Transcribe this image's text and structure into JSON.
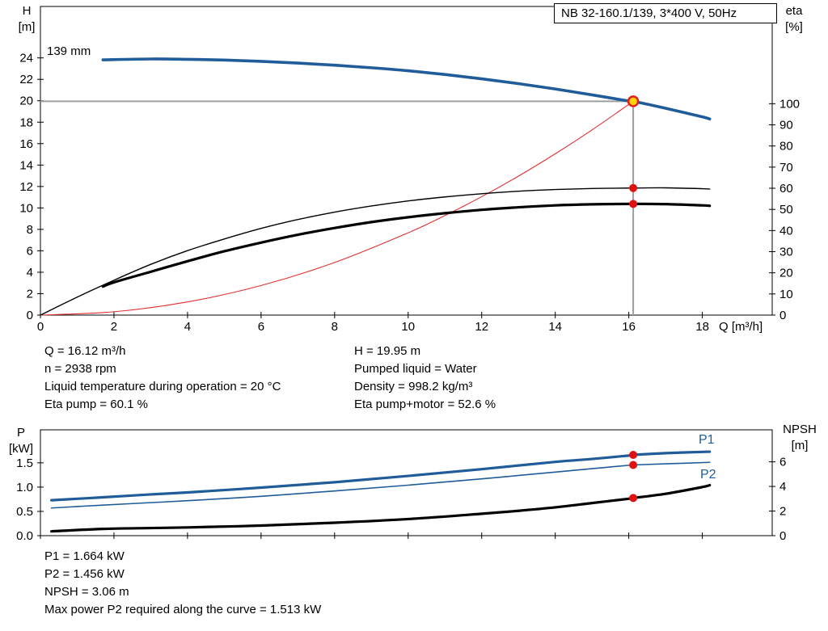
{
  "title_box": "NB 32-160.1/139, 3*400 V, 50Hz",
  "labels": {
    "impeller": "139 mm",
    "p1": "P1",
    "p2": "P2",
    "top_left_axis": [
      "H",
      "[m]"
    ],
    "top_right_axis": [
      "eta",
      "[%]"
    ],
    "x_axis": "Q [m³/h]",
    "bottom_left_axis": [
      "P",
      "[kW]"
    ],
    "bottom_right_axis": [
      "NPSH",
      "[m]"
    ]
  },
  "info_top_left": [
    "Q = 16.12 m³/h",
    "n = 2938 rpm",
    "Liquid temperature during operation = 20 °C",
    "Eta pump = 60.1 %"
  ],
  "info_top_right": [
    "H = 19.95 m",
    "Pumped liquid = Water",
    "Density = 998.2 kg/m³",
    "Eta pump+motor = 52.6 %"
  ],
  "info_bottom": [
    "P1 = 1.664 kW",
    "P2 = 1.456 kW",
    "NPSH = 3.06 m",
    "Max power P2 required along the curve = 1.513 kW"
  ],
  "colors": {
    "curve_blue": "#1f5c99",
    "curve_red": "#e03030",
    "dot": "#e01010",
    "duty_fill": "#ffd400",
    "duty_ring": "#e02020",
    "crosshair": "#9e9e9e"
  },
  "chart_data": [
    {
      "type": "line",
      "name": "hq-eta-chart",
      "title": "NB 32-160.1/139, 3*400 V, 50Hz",
      "xlabel": "Q [m³/h]",
      "ylabel_left": "H [m]",
      "ylabel_right": "eta [%]",
      "xlim": [
        0,
        19.9
      ],
      "ylim_left": [
        0,
        28.8
      ],
      "ylim_right": [
        0,
        146
      ],
      "x_ticks": [
        0,
        2,
        4,
        6,
        8,
        10,
        12,
        14,
        16,
        18
      ],
      "x_tick_labels": [
        "0",
        "2",
        "4",
        "6",
        "8",
        "10",
        "12",
        "14",
        "16",
        "18"
      ],
      "y_ticks_left": [
        0,
        2,
        4,
        6,
        8,
        10,
        12,
        14,
        16,
        18,
        20,
        22,
        24
      ],
      "y_tick_labels_left": [
        "0",
        "2",
        "4",
        "6",
        "8",
        "10",
        "12",
        "14",
        "16",
        "18",
        "20",
        "22",
        "24"
      ],
      "y_ticks_right": [
        0,
        10,
        20,
        30,
        40,
        50,
        60,
        70,
        80,
        90,
        100
      ],
      "y_tick_labels_right": [
        "0",
        "10",
        "20",
        "30",
        "40",
        "50",
        "60",
        "70",
        "80",
        "90",
        "100"
      ],
      "crosshair": {
        "x": 16.12,
        "y": 19.95
      },
      "series": [
        {
          "name": "system-curve",
          "axis": "left",
          "color": "#e03030",
          "width": 1.1,
          "x": [
            0,
            2,
            4,
            6,
            8,
            10,
            11,
            12,
            13,
            14,
            15,
            16,
            16.12
          ],
          "y": [
            0,
            0.31,
            1.23,
            2.76,
            4.91,
            7.68,
            9.29,
            11.05,
            12.97,
            15.05,
            17.28,
            19.66,
            19.95
          ]
        },
        {
          "name": "eta-pump-curve",
          "axis": "right",
          "color": "#000000",
          "width": 1.4,
          "x": [
            0,
            1,
            2,
            3,
            4,
            5,
            6,
            7,
            8,
            9,
            10,
            11,
            12,
            13,
            14,
            15,
            16,
            16.12,
            17,
            18,
            18.2
          ],
          "y": [
            0,
            8.5,
            16.5,
            24,
            30.5,
            36,
            41,
            45.2,
            48.7,
            51.6,
            54,
            55.9,
            57.4,
            58.6,
            59.4,
            59.9,
            60.1,
            60.1,
            60.2,
            59.8,
            59.6
          ]
        },
        {
          "name": "eta-pump-motor-curve",
          "axis": "right",
          "color": "#000000",
          "width": 3.2,
          "x": [
            1.7,
            2,
            3,
            4,
            5,
            6,
            7,
            8,
            9,
            10,
            11,
            12,
            13,
            14,
            15,
            16,
            16.12,
            17,
            18,
            18.2
          ],
          "y": [
            13.5,
            15.5,
            20.5,
            25.5,
            30.2,
            34.3,
            38,
            41.2,
            44,
            46.3,
            48.2,
            49.8,
            51,
            51.9,
            52.4,
            52.6,
            52.6,
            52.5,
            51.9,
            51.7
          ]
        },
        {
          "name": "head-curve-139mm",
          "axis": "left",
          "color": "#1f5c99",
          "width": 3.6,
          "x": [
            1.7,
            3,
            4,
            5,
            6,
            7,
            8,
            9,
            10,
            11,
            12,
            13,
            14,
            15,
            16,
            16.12,
            17,
            18,
            18.2
          ],
          "y": [
            23.82,
            23.9,
            23.87,
            23.8,
            23.68,
            23.52,
            23.32,
            23.08,
            22.8,
            22.45,
            22.05,
            21.6,
            21.1,
            20.55,
            19.98,
            19.95,
            19.3,
            18.5,
            18.3
          ]
        }
      ],
      "markers": [
        {
          "x": 16.12,
          "y": 19.95,
          "axis": "left",
          "style": "duty",
          "name": "duty-point"
        },
        {
          "x": 16.12,
          "y": 60.1,
          "axis": "right",
          "style": "dot",
          "name": "eta-pump-point"
        },
        {
          "x": 16.12,
          "y": 52.6,
          "axis": "right",
          "style": "dot",
          "name": "eta-pump-motor-point"
        }
      ]
    },
    {
      "type": "line",
      "name": "power-npsh-chart",
      "xlabel": "",
      "ylabel_left": "P [kW]",
      "ylabel_right": "NPSH [m]",
      "xlim": [
        0,
        19.9
      ],
      "ylim_left": [
        0,
        2.18
      ],
      "ylim_right": [
        0,
        8.6
      ],
      "x_ticks": [
        0,
        2,
        4,
        6,
        8,
        10,
        12,
        14,
        16,
        18
      ],
      "y_ticks_left": [
        0,
        0.5,
        1.0,
        1.5
      ],
      "y_tick_labels_left": [
        "0.0",
        "0.5",
        "1.0",
        "1.5"
      ],
      "y_ticks_right": [
        0,
        2,
        4,
        6
      ],
      "y_tick_labels_right": [
        "0",
        "2",
        "4",
        "6"
      ],
      "series": [
        {
          "name": "npsh-curve",
          "axis": "right",
          "color": "#000000",
          "width": 3.2,
          "x": [
            0.3,
            1.7,
            3,
            4,
            6,
            8,
            10,
            12,
            13,
            14,
            15,
            16,
            16.12,
            17,
            18,
            18.2
          ],
          "y": [
            0.35,
            0.55,
            0.62,
            0.67,
            0.82,
            1.05,
            1.35,
            1.78,
            2.02,
            2.3,
            2.65,
            3.0,
            3.06,
            3.4,
            3.95,
            4.1
          ]
        },
        {
          "name": "p2-curve",
          "axis": "left",
          "color": "#1f5c99",
          "width": 1.6,
          "x": [
            0.3,
            1,
            1.7,
            3,
            4,
            6,
            8,
            10,
            12,
            14,
            15,
            16,
            16.12,
            17,
            18.2
          ],
          "y": [
            0.57,
            0.6,
            0.63,
            0.68,
            0.72,
            0.81,
            0.92,
            1.04,
            1.17,
            1.31,
            1.38,
            1.45,
            1.456,
            1.48,
            1.51
          ]
        },
        {
          "name": "p1-curve",
          "axis": "left",
          "color": "#1f5c99",
          "width": 3.2,
          "x": [
            0.3,
            1,
            1.7,
            3,
            4,
            6,
            8,
            10,
            12,
            14,
            15,
            16,
            16.12,
            17,
            18.2
          ],
          "y": [
            0.73,
            0.76,
            0.79,
            0.85,
            0.89,
            0.99,
            1.1,
            1.23,
            1.37,
            1.52,
            1.58,
            1.65,
            1.664,
            1.7,
            1.73
          ]
        }
      ],
      "markers": [
        {
          "x": 16.12,
          "y": 1.664,
          "axis": "left",
          "style": "dot",
          "name": "p1-point"
        },
        {
          "x": 16.12,
          "y": 1.456,
          "axis": "left",
          "style": "dot",
          "name": "p2-point"
        },
        {
          "x": 16.12,
          "y": 3.06,
          "axis": "right",
          "style": "dot",
          "name": "npsh-point"
        }
      ]
    }
  ]
}
